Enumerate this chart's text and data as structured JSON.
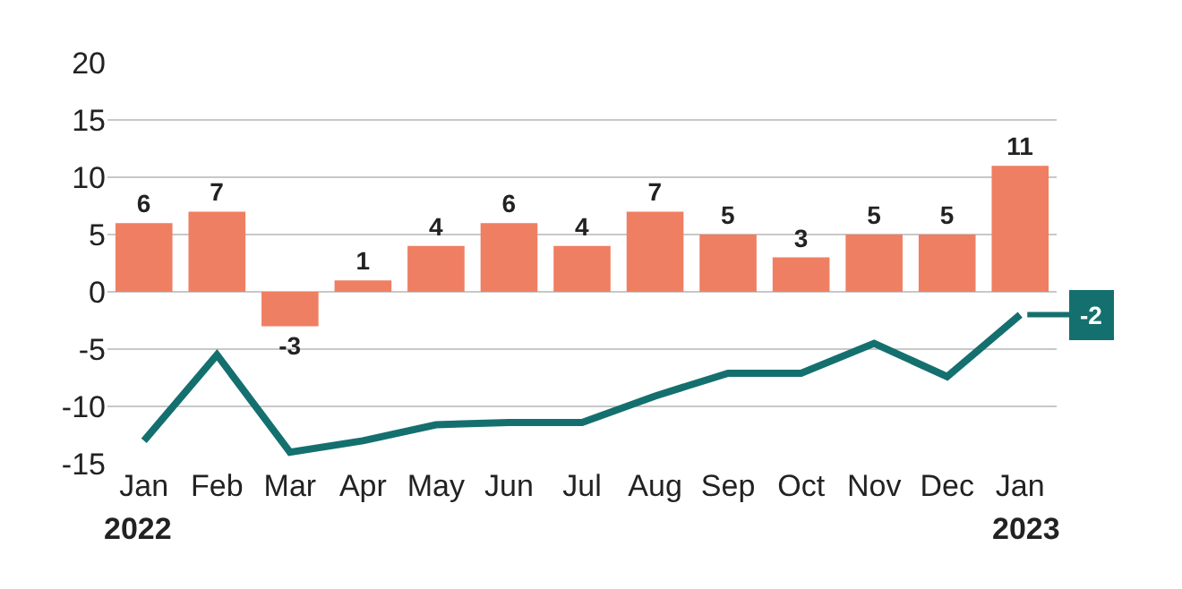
{
  "chart_data": {
    "type": "bar",
    "categories": [
      "Jan",
      "Feb",
      "Mar",
      "Apr",
      "May",
      "Jun",
      "Jul",
      "Aug",
      "Sep",
      "Oct",
      "Nov",
      "Dec",
      "Jan"
    ],
    "series": [
      {
        "color": "#ef7f62",
        "values": [
          6,
          7,
          -3,
          1,
          4,
          6,
          4,
          7,
          5,
          3,
          5,
          5,
          11
        ],
        "value_labels": [
          "6",
          "7",
          "-3",
          "1",
          "4",
          "6",
          "4",
          "7",
          "5",
          "3",
          "5",
          "5",
          "11"
        ]
      },
      {
        "type": "line",
        "color": "#14706e",
        "values": [
          -13.0,
          -5.5,
          -14.0,
          -13.0,
          -11.6,
          -11.4,
          -11.4,
          -9.1,
          -7.1,
          -7.1,
          -4.5,
          -7.4,
          -2
        ],
        "value_labels": [
          null,
          null,
          null,
          null,
          null,
          null,
          null,
          null,
          null,
          null,
          null,
          null,
          "-2"
        ]
      }
    ],
    "annotations": [
      "2022",
      "2023"
    ],
    "ylim": [
      -15,
      20
    ],
    "yticks": [
      -15,
      -10,
      -5,
      0,
      5,
      10,
      15,
      20
    ],
    "grid": "y",
    "marker": "none",
    "line_style": "solid"
  }
}
